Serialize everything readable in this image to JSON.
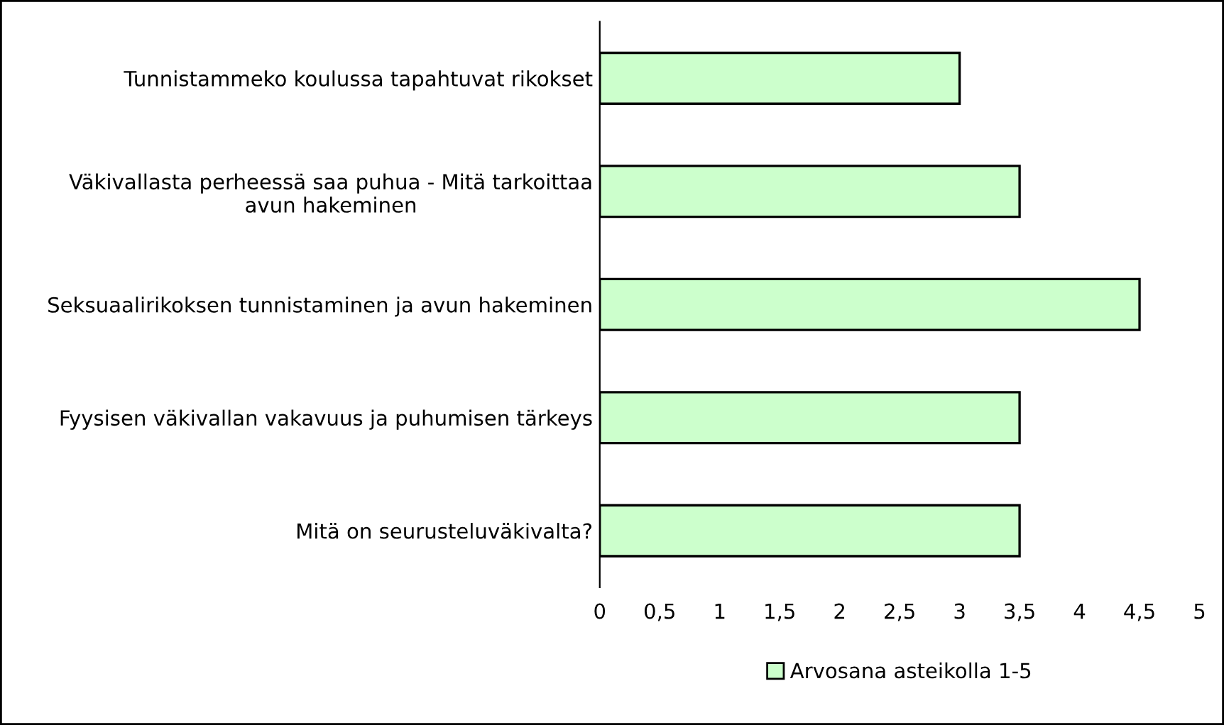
{
  "chart_data": {
    "type": "bar",
    "orientation": "horizontal",
    "categories": [
      "Tunnistammeko koulussa tapahtuvat rikokset",
      "Väkivallasta perheessä saa puhua - Mitä tarkoittaa\navun hakeminen",
      "Seksuaalirikoksen tunnistaminen ja avun hakeminen",
      "Fyysisen väkivallan vakavuus ja puhumisen tärkeys",
      "Mitä on seurusteluväkivalta?"
    ],
    "series": [
      {
        "name": "Arvosana asteikolla 1-5",
        "color": "#ccffcc",
        "values": [
          3,
          3.5,
          4.5,
          3.5,
          3.5
        ]
      }
    ],
    "xlim": [
      0,
      5
    ],
    "xticks": [
      0,
      {
        "value": 0.5,
        "label": "0,5"
      },
      1,
      {
        "value": 1.5,
        "label": "1,5"
      },
      2,
      {
        "value": 2.5,
        "label": "2,5"
      },
      3,
      {
        "value": 3.5,
        "label": "3,5"
      },
      4,
      {
        "value": 4.5,
        "label": "4,5"
      },
      5
    ],
    "grid": false,
    "legend": "bottom"
  }
}
